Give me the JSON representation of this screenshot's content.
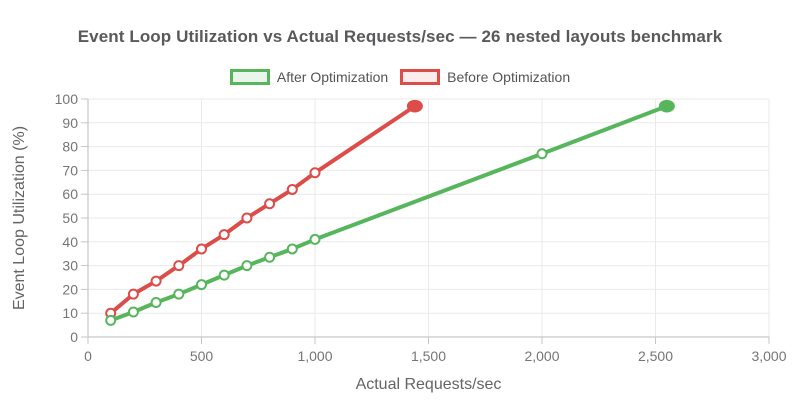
{
  "colors": {
    "background": "#ffffff",
    "title": "#58595b",
    "legend_label": "#545454",
    "grid": "#e9e9e9",
    "axis_line": "#c6c6c6",
    "tick_label": "#757575",
    "axis_title": "#646464",
    "after_green": "#57b65c",
    "after_green_tint": "#eaf6ec",
    "before_red": "#dc4c48",
    "before_red_tint": "#fbebea",
    "point_fill": "#ffffff"
  },
  "chart_data": {
    "type": "line",
    "title": "Event Loop Utilization vs Actual Requests/sec — 26 nested layouts benchmark",
    "xlabel": "Actual Requests/sec",
    "ylabel": "Event Loop Utilization (%)",
    "xlim": [
      0,
      3000
    ],
    "ylim": [
      0,
      100
    ],
    "grid": true,
    "legend_position": "top",
    "x_ticks": [
      0,
      500,
      1000,
      1500,
      2000,
      2500,
      3000
    ],
    "x_tick_labels": [
      "0",
      "500",
      "1,000",
      "1,500",
      "2,000",
      "2,500",
      "3,000"
    ],
    "y_ticks": [
      0,
      10,
      20,
      30,
      40,
      50,
      60,
      70,
      80,
      90,
      100
    ],
    "y_tick_labels": [
      "0",
      "10",
      "20",
      "30",
      "40",
      "50",
      "60",
      "70",
      "80",
      "90",
      "100"
    ],
    "series": [
      {
        "id": "after-optimization",
        "name": "After Optimization",
        "color": "#57b65c",
        "fill_tint": "#eaf6ec",
        "marker": "open-circle",
        "end_marker": "large-filled-dot",
        "x": [
          100,
          200,
          300,
          400,
          500,
          600,
          700,
          800,
          900,
          1000,
          2000,
          2550
        ],
        "y": [
          7,
          10.5,
          14.5,
          18,
          22,
          26,
          30,
          33.5,
          37,
          41,
          77,
          97
        ]
      },
      {
        "id": "before-optimization",
        "name": "Before Optimization",
        "color": "#dc4c48",
        "fill_tint": "#fbebea",
        "marker": "open-circle",
        "end_marker": "large-filled-dot",
        "x": [
          100,
          200,
          300,
          400,
          500,
          600,
          700,
          800,
          900,
          1000,
          1440
        ],
        "y": [
          10,
          18,
          23.5,
          30,
          37,
          43,
          50,
          56,
          62,
          69,
          97
        ]
      }
    ]
  }
}
